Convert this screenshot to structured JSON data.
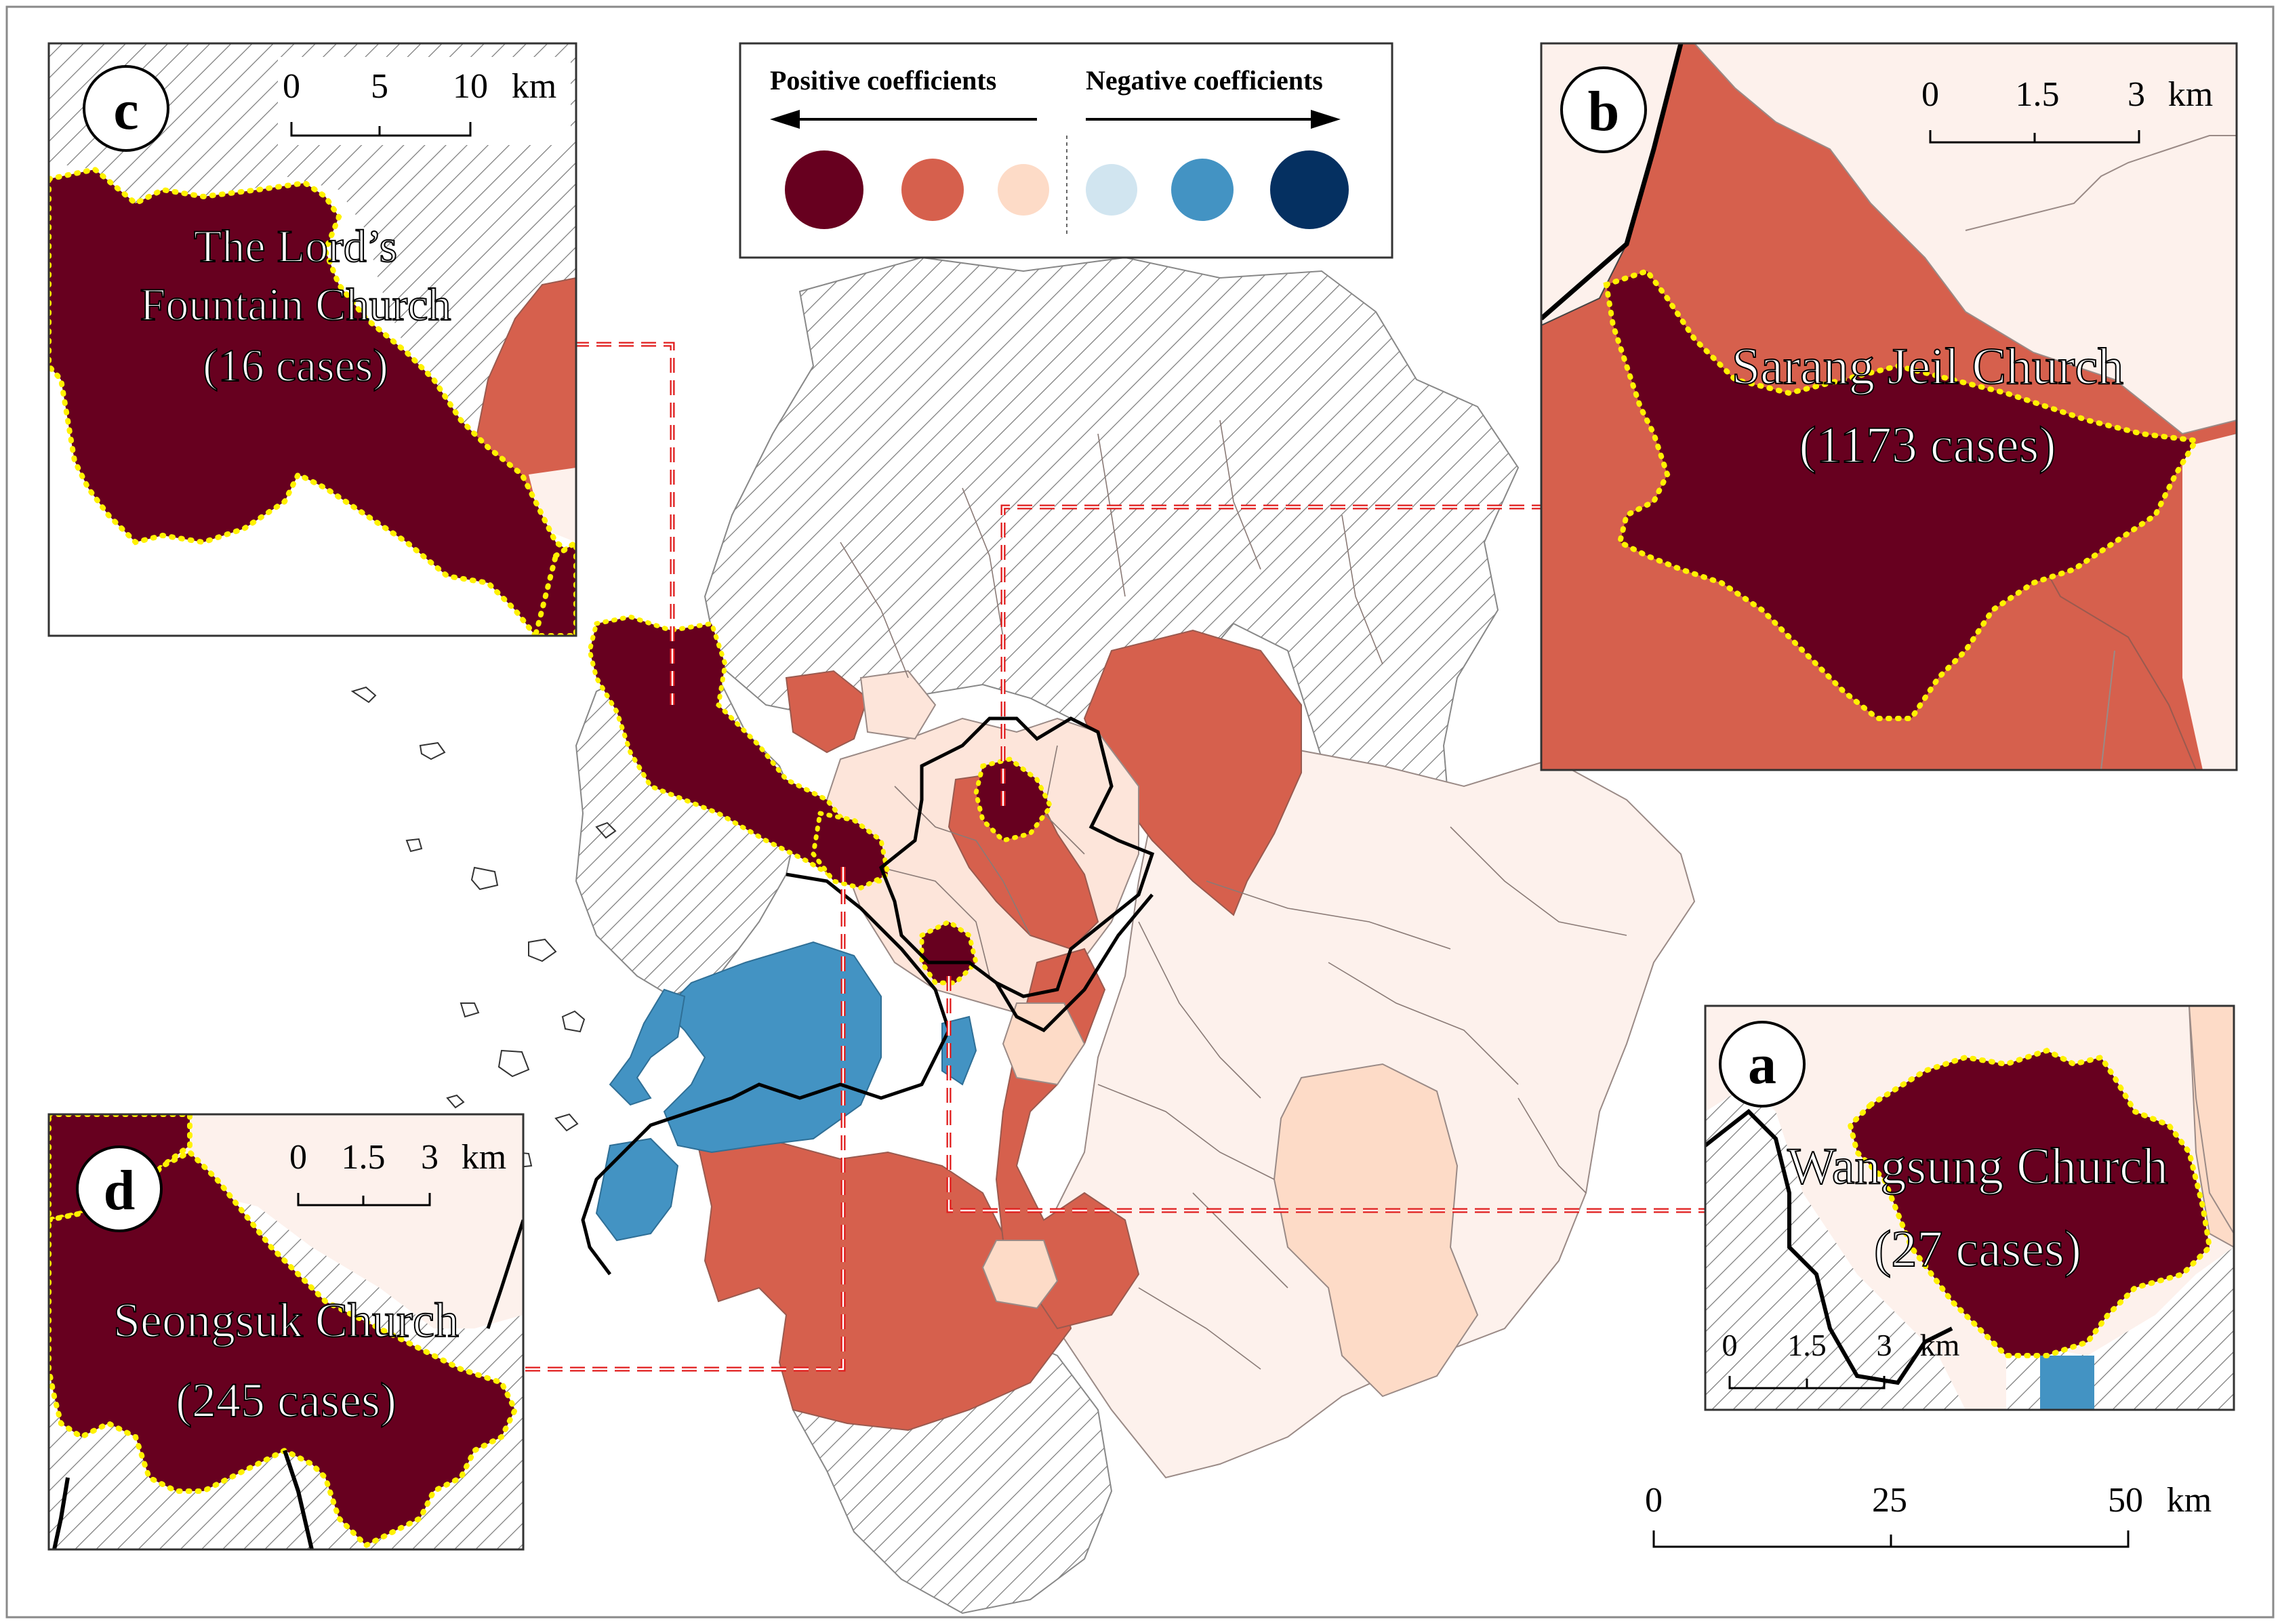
{
  "legend": {
    "positive_label": "Positive coefficients",
    "negative_label": "Negative coefficients",
    "classes": [
      {
        "name": "strong-positive",
        "color": "#67001f"
      },
      {
        "name": "moderate-positive",
        "color": "#d6604d"
      },
      {
        "name": "weak-positive",
        "color": "#fddbc7"
      },
      {
        "name": "weak-negative",
        "color": "#d1e5f0"
      },
      {
        "name": "moderate-negative",
        "color": "#4393c3"
      },
      {
        "name": "strong-negative",
        "color": "#053061"
      }
    ],
    "extra_colors": {
      "very_weak_positive": "#fdf1ec",
      "hatched_insignificant": "#ffffff",
      "highlight_outline": "#fff200",
      "leader_line": "#e01b1b"
    }
  },
  "insets": {
    "a": {
      "letter": "a",
      "church": "Wangsung Church",
      "cases": "(27 cases)",
      "scale": {
        "ticks": [
          "0",
          "1.5",
          "3"
        ],
        "unit": "km"
      }
    },
    "b": {
      "letter": "b",
      "church": "Sarang Jeil Church",
      "cases": "(1173 cases)",
      "scale": {
        "ticks": [
          "0",
          "1.5",
          "3"
        ],
        "unit": "km"
      }
    },
    "c": {
      "letter": "c",
      "church_line1": "The Lord’s",
      "church_line2": "Fountain Church",
      "cases": "(16 cases)",
      "scale": {
        "ticks": [
          "0",
          "5",
          "10"
        ],
        "unit": "km"
      }
    },
    "d": {
      "letter": "d",
      "church": "Seongsuk Church",
      "cases": "(245 cases)",
      "scale": {
        "ticks": [
          "0",
          "1.5",
          "3"
        ],
        "unit": "km"
      }
    }
  },
  "main_scale": {
    "ticks": [
      "0",
      "25",
      "50"
    ],
    "unit": "km"
  }
}
